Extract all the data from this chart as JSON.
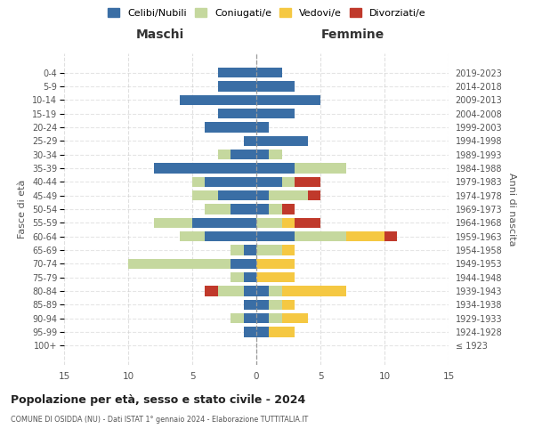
{
  "age_groups": [
    "100+",
    "95-99",
    "90-94",
    "85-89",
    "80-84",
    "75-79",
    "70-74",
    "65-69",
    "60-64",
    "55-59",
    "50-54",
    "45-49",
    "40-44",
    "35-39",
    "30-34",
    "25-29",
    "20-24",
    "15-19",
    "10-14",
    "5-9",
    "0-4"
  ],
  "birth_years": [
    "≤ 1923",
    "1924-1928",
    "1929-1933",
    "1934-1938",
    "1939-1943",
    "1944-1948",
    "1949-1953",
    "1954-1958",
    "1959-1963",
    "1964-1968",
    "1969-1973",
    "1974-1978",
    "1979-1983",
    "1984-1988",
    "1989-1993",
    "1994-1998",
    "1999-2003",
    "2004-2008",
    "2009-2013",
    "2014-2018",
    "2019-2023"
  ],
  "maschi": {
    "celibi": [
      0,
      1,
      1,
      1,
      1,
      1,
      2,
      1,
      4,
      5,
      2,
      3,
      4,
      8,
      2,
      1,
      4,
      3,
      6,
      3,
      3
    ],
    "coniugati": [
      0,
      0,
      1,
      0,
      2,
      1,
      8,
      1,
      2,
      3,
      2,
      2,
      1,
      0,
      1,
      0,
      0,
      0,
      0,
      0,
      0
    ],
    "vedovi": [
      0,
      0,
      0,
      0,
      0,
      0,
      0,
      0,
      0,
      0,
      0,
      0,
      0,
      0,
      0,
      0,
      0,
      0,
      0,
      0,
      0
    ],
    "divorziati": [
      0,
      0,
      0,
      0,
      1,
      0,
      0,
      0,
      0,
      0,
      0,
      0,
      0,
      0,
      0,
      0,
      0,
      0,
      0,
      0,
      0
    ]
  },
  "femmine": {
    "nubili": [
      0,
      1,
      1,
      1,
      1,
      0,
      0,
      0,
      3,
      0,
      1,
      1,
      2,
      3,
      1,
      4,
      1,
      3,
      5,
      3,
      2
    ],
    "coniugate": [
      0,
      0,
      1,
      1,
      1,
      0,
      0,
      2,
      4,
      2,
      1,
      3,
      1,
      4,
      1,
      0,
      0,
      0,
      0,
      0,
      0
    ],
    "vedove": [
      0,
      2,
      2,
      1,
      5,
      3,
      3,
      1,
      3,
      1,
      0,
      0,
      0,
      0,
      0,
      0,
      0,
      0,
      0,
      0,
      0
    ],
    "divorziate": [
      0,
      0,
      0,
      0,
      0,
      0,
      0,
      0,
      1,
      2,
      1,
      1,
      2,
      0,
      0,
      0,
      0,
      0,
      0,
      0,
      0
    ]
  },
  "colors": {
    "celibi_nubili": "#3a6ea5",
    "coniugati": "#c5d89e",
    "vedovi": "#f5c842",
    "divorziati": "#c0392b"
  },
  "title": "Popolazione per età, sesso e stato civile - 2024",
  "subtitle": "COMUNE DI OSIDDA (NU) - Dati ISTAT 1° gennaio 2024 - Elaborazione TUTTITALIA.IT",
  "xlabel_left": "Maschi",
  "xlabel_right": "Femmine",
  "ylabel_left": "Fasce di età",
  "ylabel_right": "Anni di nascita",
  "xlim": 15,
  "background_color": "#ffffff",
  "legend_labels": [
    "Celibi/Nubili",
    "Coniugati/e",
    "Vedovi/e",
    "Divorziati/e"
  ]
}
